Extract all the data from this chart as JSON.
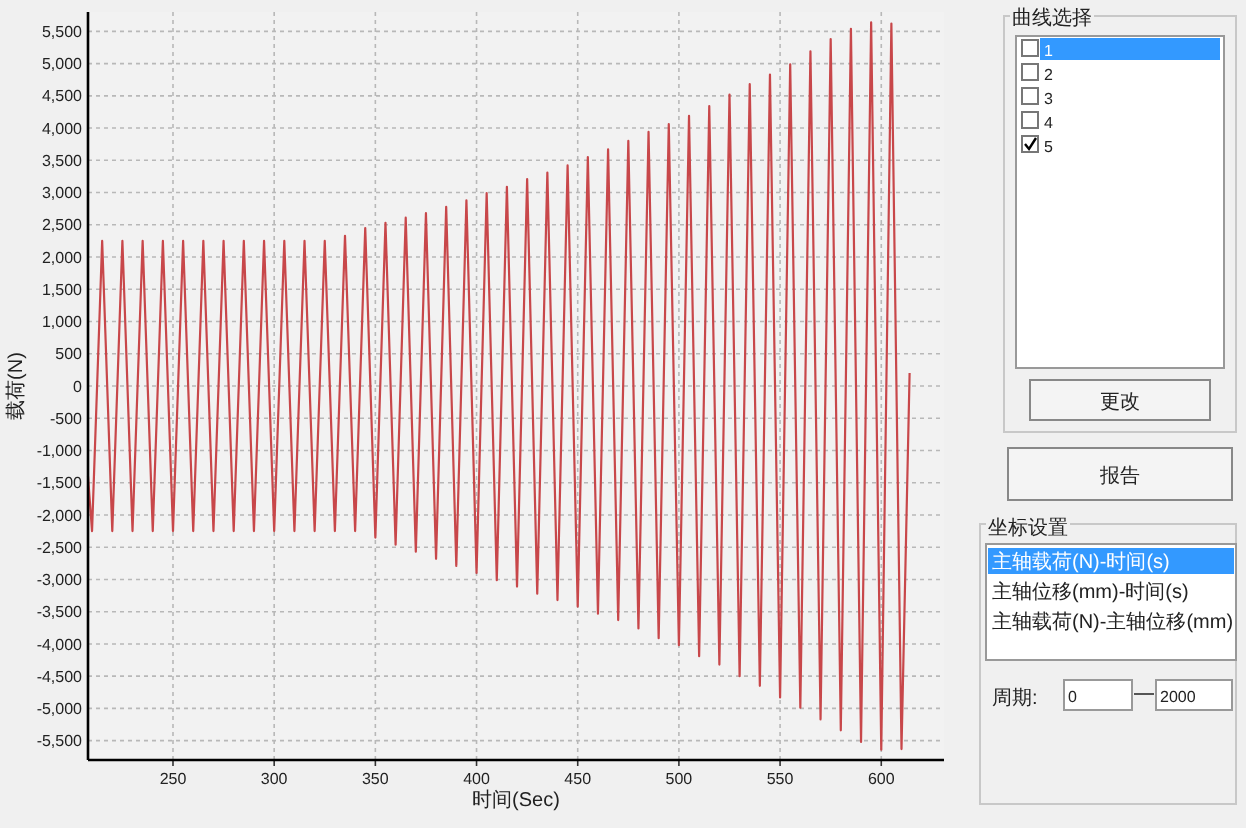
{
  "chart_data": {
    "type": "line",
    "xlabel": "时间(Sec)",
    "ylabel": "载荷(N)",
    "color": "#c8474a",
    "grid": true,
    "xlim": [
      208,
      631
    ],
    "ylim": [
      -5800,
      5800
    ],
    "xticks": [
      250,
      300,
      350,
      400,
      450,
      500,
      550,
      600
    ],
    "yticks": [
      {
        "value": 5500,
        "label": "5,500"
      },
      {
        "value": 5000,
        "label": "5,000"
      },
      {
        "value": 4500,
        "label": "4,500"
      },
      {
        "value": 4000,
        "label": "4,000"
      },
      {
        "value": 3500,
        "label": "3,500"
      },
      {
        "value": 3000,
        "label": "3,000"
      },
      {
        "value": 2500,
        "label": "2,500"
      },
      {
        "value": 2000,
        "label": "2,000"
      },
      {
        "value": 1500,
        "label": "1,500"
      },
      {
        "value": 1000,
        "label": "1,000"
      },
      {
        "value": 500,
        "label": "500"
      },
      {
        "value": 0,
        "label": "0"
      },
      {
        "value": -500,
        "label": "-500"
      },
      {
        "value": -1000,
        "label": "-1,000"
      },
      {
        "value": -1500,
        "label": "-1,500"
      },
      {
        "value": -2000,
        "label": "-2,000"
      },
      {
        "value": -2500,
        "label": "-2,500"
      },
      {
        "value": -3000,
        "label": "-3,000"
      },
      {
        "value": -3500,
        "label": "-3,500"
      },
      {
        "value": -4000,
        "label": "-4,000"
      },
      {
        "value": -4500,
        "label": "-4,500"
      },
      {
        "value": -5000,
        "label": "-5,000"
      },
      {
        "value": -5500,
        "label": "-5,500"
      }
    ],
    "x": [
      208,
      210,
      215,
      220,
      225,
      230,
      235,
      240,
      245,
      250,
      255,
      260,
      265,
      270,
      275,
      280,
      285,
      290,
      295,
      300,
      305,
      310,
      315,
      320,
      325,
      330,
      335,
      340,
      345,
      350,
      355,
      360,
      365,
      370,
      375,
      380,
      385,
      390,
      395,
      400,
      405,
      410,
      415,
      420,
      425,
      430,
      435,
      440,
      445,
      450,
      455,
      460,
      465,
      470,
      475,
      480,
      485,
      490,
      495,
      500,
      505,
      510,
      515,
      520,
      525,
      530,
      535,
      540,
      545,
      550,
      555,
      560,
      565,
      570,
      575,
      580,
      585,
      590,
      595,
      600,
      605,
      610,
      614
    ],
    "values": [
      -1400,
      -2250,
      2250,
      -2250,
      2250,
      -2250,
      2250,
      -2250,
      2250,
      -2250,
      2250,
      -2250,
      2250,
      -2250,
      2250,
      -2250,
      2250,
      -2250,
      2250,
      -2250,
      2250,
      -2250,
      2250,
      -2250,
      2250,
      -2250,
      2330,
      -2250,
      2450,
      -2350,
      2530,
      -2460,
      2610,
      -2570,
      2680,
      -2680,
      2780,
      -2790,
      2880,
      -2900,
      2990,
      -3010,
      3090,
      -3110,
      3210,
      -3220,
      3310,
      -3320,
      3420,
      -3420,
      3550,
      -3530,
      3670,
      -3630,
      3800,
      -3760,
      3940,
      -3910,
      4060,
      -4020,
      4190,
      -4190,
      4340,
      -4320,
      4520,
      -4500,
      4680,
      -4650,
      4830,
      -4830,
      4990,
      -4990,
      5190,
      -5170,
      5380,
      -5340,
      5540,
      -5520,
      5640,
      -5640,
      5620,
      -5630,
      200
    ],
    "annotations": [
      "曲线选择",
      "1",
      "2",
      "3",
      "4",
      "5",
      "更改",
      "报告",
      "坐标设置",
      "主轴载荷(N)-时间(s)",
      "主轴位移(mm)-时间(s)",
      "主轴载荷(N)-主轴位移(mm)",
      "周期:",
      "0",
      "2000"
    ]
  }
}
